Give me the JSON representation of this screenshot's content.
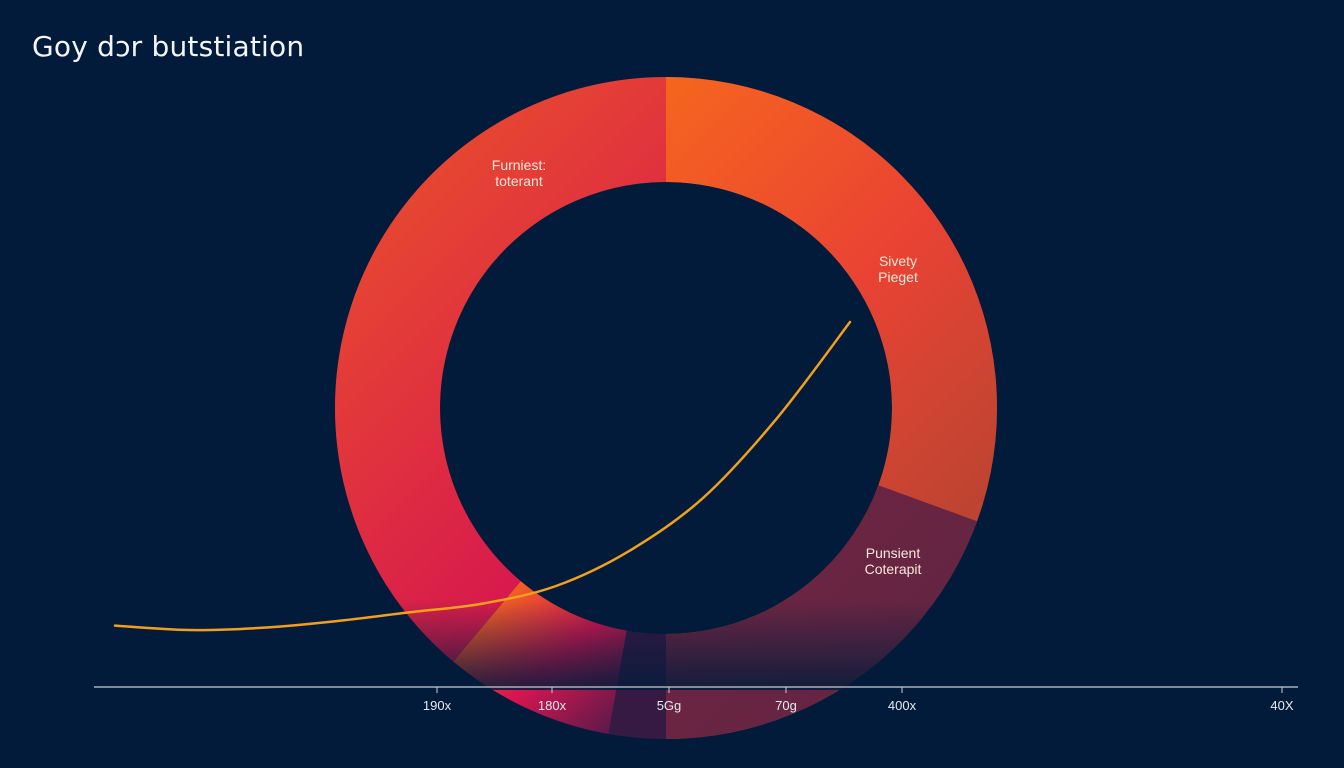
{
  "chart_data": {
    "type": "pie",
    "title": "Goy dɔr butstiation",
    "style": "donut",
    "colors": {
      "background": "#031b3b",
      "ring_orange": "#ff8a0a",
      "ring_red": "#d81550",
      "ring_dark": "#4a1b48",
      "curve": "#f2a01a",
      "axis": "#c9ccd2"
    },
    "slices": [
      {
        "label_lines": [
          "Furniest:",
          "toterant"
        ]
      },
      {
        "label_lines": [
          "Sivety",
          "Pieget"
        ]
      },
      {
        "label_lines": [
          "Punsient",
          "Coterapit"
        ]
      }
    ],
    "curve": {
      "name": "trend",
      "x": [
        0,
        10,
        20,
        30,
        40,
        50,
        60,
        70,
        80,
        90,
        100
      ],
      "y": [
        1,
        0,
        0.5,
        2,
        4,
        6,
        10,
        18,
        30,
        48,
        70
      ]
    },
    "x_axis": {
      "ticks": [
        "190x",
        "180x",
        "5Gg",
        "70g",
        "400x",
        "40X"
      ]
    }
  }
}
